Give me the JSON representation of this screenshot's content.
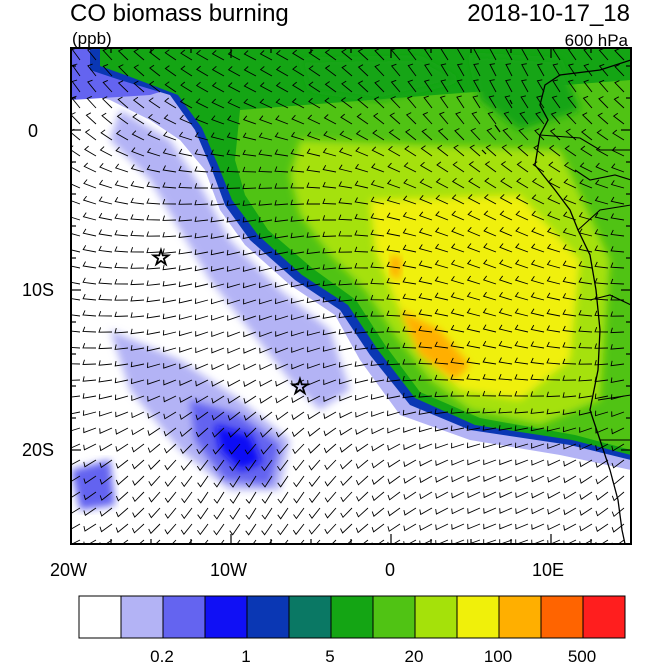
{
  "title": "CO biomass burning",
  "units": "(ppb)",
  "datetime": "2018-10-17_18",
  "level": "600 hPa",
  "axes": {
    "x_ticks": [
      "20W",
      "10W",
      "0",
      "10E"
    ],
    "y_ticks": [
      "0",
      "10S",
      "20S"
    ]
  },
  "colorbar": {
    "colors": [
      "#ffffff",
      "#b3b3f5",
      "#6464f0",
      "#1010f5",
      "#0a37b4",
      "#0a7864",
      "#14a514",
      "#50c314",
      "#a5e10a",
      "#f0f00a",
      "#ffaf00",
      "#ff6400",
      "#ff1e1e"
    ],
    "labels": [
      "0.2",
      "1",
      "5",
      "20",
      "100",
      "500"
    ]
  },
  "markers": [
    {
      "name": "star-marker-1",
      "symbol": "star"
    },
    {
      "name": "star-marker-2",
      "symbol": "star"
    }
  ]
}
